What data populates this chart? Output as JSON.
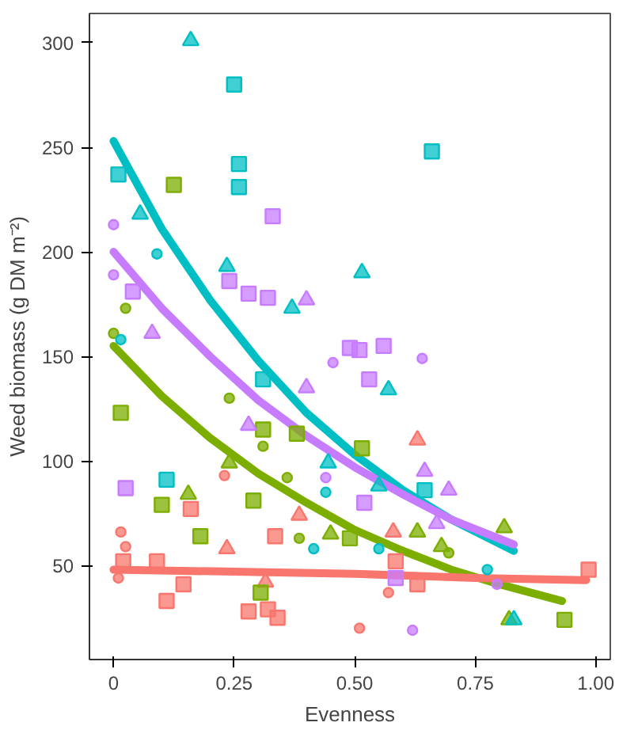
{
  "chart_data": {
    "type": "scatter",
    "xlabel": "Evenness",
    "ylabel": "Weed biomass (g DM m⁻²)",
    "xlim": [
      -0.05,
      1.03
    ],
    "ylim": [
      5,
      314
    ],
    "xticks": [
      0,
      0.25,
      {
        "value": 0.5,
        "label": "0.50"
      },
      0.75,
      {
        "value": 1,
        "label": "1.00"
      }
    ],
    "yticks": [
      50,
      100,
      150,
      200,
      250,
      300
    ],
    "grid": false,
    "series": [
      {
        "color": "#00bfc4",
        "marker": "square",
        "x": [
          0.01,
          0.26,
          0.26,
          0.25,
          0.66,
          0.31,
          0.11,
          0.645
        ],
        "values": [
          237,
          242,
          231,
          280,
          248,
          139,
          91,
          86
        ]
      },
      {
        "color": "#00bfc4",
        "marker": "triangle",
        "x": [
          0.055,
          0.16,
          0.515,
          0.235,
          0.37,
          0.445,
          0.57,
          0.55,
          0.83
        ],
        "values": [
          218,
          301,
          190,
          193,
          173,
          99,
          134,
          88,
          24
        ]
      },
      {
        "color": "#00bfc4",
        "marker": "circle",
        "x": [
          0.09,
          0.015,
          0.44,
          0.415,
          0.55,
          0.775
        ],
        "values": [
          199,
          158,
          85,
          58,
          58,
          48
        ]
      },
      {
        "color": "#c77cff",
        "marker": "square",
        "x": [
          0.33,
          0.24,
          0.28,
          0.32,
          0.04,
          0.49,
          0.025,
          0.51,
          0.53,
          0.56,
          0.52,
          0.585
        ],
        "values": [
          217,
          186,
          180,
          178,
          181,
          154,
          87,
          153,
          139,
          155,
          80,
          44
        ]
      },
      {
        "color": "#c77cff",
        "marker": "triangle",
        "x": [
          0.4,
          0.08,
          0.4,
          0.28,
          0.645,
          0.695,
          0.67
        ],
        "values": [
          177,
          161,
          135,
          117,
          95,
          86,
          70
        ]
      },
      {
        "color": "#c77cff",
        "marker": "circle",
        "x": [
          0,
          0,
          0.455,
          0.44,
          0.64,
          0.62,
          0.795
        ],
        "values": [
          213,
          189,
          147,
          92,
          149,
          19,
          41
        ]
      },
      {
        "color": "#7cae00",
        "marker": "square",
        "x": [
          0.125,
          0.015,
          0.31,
          0.38,
          0.1,
          0.29,
          0.18,
          0.515,
          0.49,
          0.305,
          0.935
        ],
        "values": [
          232,
          123,
          115,
          113,
          79,
          81,
          64,
          106,
          63,
          37,
          24
        ]
      },
      {
        "color": "#7cae00",
        "marker": "triangle",
        "x": [
          0.24,
          0.155,
          0.45,
          0.63,
          0.81,
          0.68,
          0.82
        ],
        "values": [
          99,
          84,
          65,
          66,
          68,
          59,
          24
        ]
      },
      {
        "color": "#7cae00",
        "marker": "circle",
        "x": [
          0.025,
          0,
          0.24,
          0.31,
          0.36,
          0.385,
          0.695
        ],
        "values": [
          173,
          161,
          130,
          107,
          92,
          63,
          56
        ]
      },
      {
        "color": "#f8766d",
        "marker": "square",
        "x": [
          0.16,
          0.335,
          0.02,
          0.09,
          0.145,
          0.585,
          0.985,
          0.11,
          0.28,
          0.32,
          0.34,
          0.63
        ],
        "values": [
          77,
          64,
          52,
          52,
          41,
          52,
          48,
          33,
          28,
          29,
          25,
          41
        ]
      },
      {
        "color": "#f8766d",
        "marker": "triangle",
        "x": [
          0.385,
          0.235,
          0.315,
          0.63,
          0.58
        ],
        "values": [
          74,
          58,
          42,
          110,
          66
        ]
      },
      {
        "color": "#f8766d",
        "marker": "circle",
        "x": [
          0.23,
          0.015,
          0.025,
          0.51,
          0.57,
          0.01
        ],
        "values": [
          93,
          66,
          59,
          20,
          37,
          44
        ]
      },
      {
        "type": "line",
        "color": "#00bfc4",
        "x": [
          0,
          0.1,
          0.2,
          0.3,
          0.4,
          0.5,
          0.6,
          0.7,
          0.83
        ],
        "values": [
          253,
          211,
          177,
          148,
          123,
          103,
          86,
          72,
          57
        ]
      },
      {
        "type": "line",
        "color": "#c77cff",
        "x": [
          0,
          0.1,
          0.2,
          0.3,
          0.4,
          0.5,
          0.6,
          0.7,
          0.83
        ],
        "values": [
          200,
          173,
          150,
          129,
          112,
          97,
          84,
          72,
          60
        ]
      },
      {
        "type": "line",
        "color": "#7cae00",
        "x": [
          0,
          0.1,
          0.2,
          0.3,
          0.4,
          0.5,
          0.6,
          0.7,
          0.8,
          0.93
        ],
        "values": [
          155,
          131,
          111,
          94,
          80,
          67,
          57,
          48,
          41,
          33
        ]
      },
      {
        "type": "line",
        "color": "#f8766d",
        "x": [
          0,
          0.25,
          0.5,
          0.75,
          0.98
        ],
        "values": [
          48,
          47,
          46,
          44,
          43
        ]
      }
    ]
  }
}
